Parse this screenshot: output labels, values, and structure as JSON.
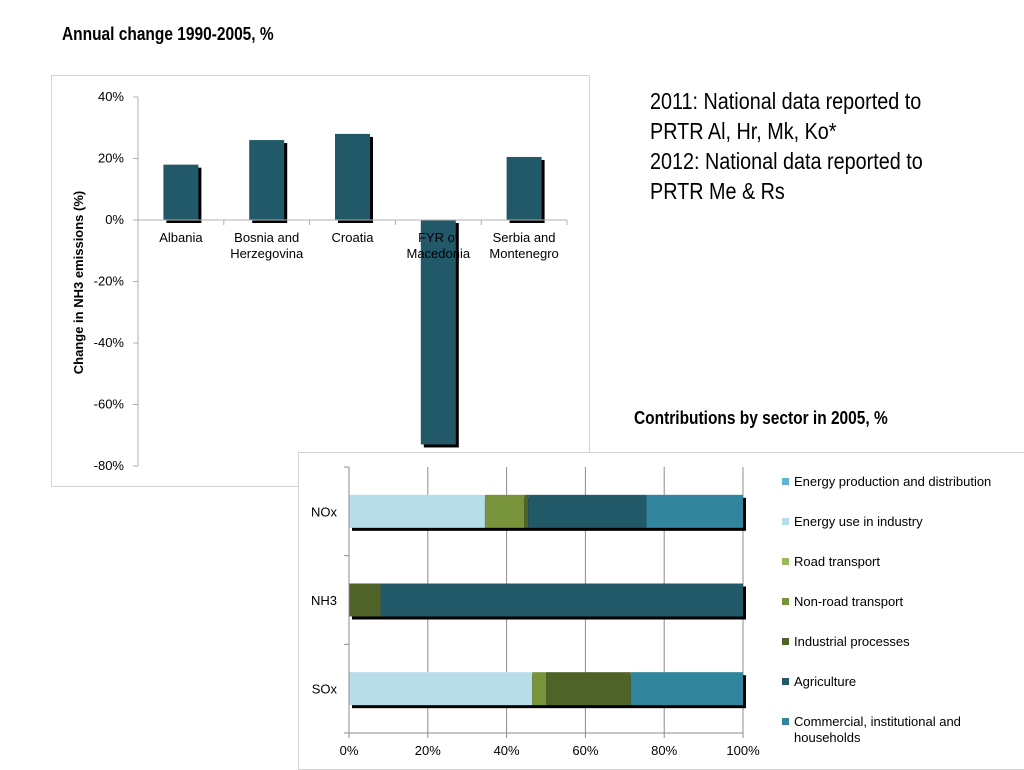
{
  "titles": {
    "annual_change": "Annual change 1990-2005, %",
    "contributions": "Contributions by sector in 2005, %"
  },
  "note_lines": [
    "2011: National data reported to",
    "PRTR Al, Hr, Mk, Ko*",
    "2012: National data reported to",
    "PRTR Me & Rs"
  ],
  "chart_data": [
    {
      "type": "bar",
      "title": "Annual change 1990-2005, %",
      "ylabel": "Change in NH3 emissions (%)",
      "xlabel": "",
      "categories": [
        [
          "Albania"
        ],
        [
          "Bosnia and",
          "Herzegovina"
        ],
        [
          "Croatia"
        ],
        [
          "FYR of",
          "Macedonia"
        ],
        [
          "Serbia and",
          "Montenegro"
        ]
      ],
      "values": [
        18,
        26,
        28,
        -73,
        20.5
      ],
      "ylim": [
        -80,
        40
      ],
      "yticks": [
        40,
        20,
        0,
        -20,
        -40,
        -60,
        -80
      ],
      "ytick_labels": [
        "40%",
        "20%",
        "0%",
        "-20%",
        "-40%",
        "-60%",
        "-80%"
      ],
      "bar_color": "#215968",
      "grid": false
    },
    {
      "type": "bar",
      "orientation": "horizontal",
      "stacked": true,
      "title": "Contributions by sector in 2005, %",
      "categories": [
        "NOx",
        "NH3",
        "SOx"
      ],
      "series": [
        {
          "name": "Energy production and distribution",
          "color": "#5fb4d4",
          "values": [
            0,
            0,
            0
          ]
        },
        {
          "name": "Energy use in industry",
          "color": "#b7dee8",
          "values": [
            34.5,
            0,
            46.5
          ]
        },
        {
          "name": "Road transport",
          "color": "#9bbb59",
          "values": [
            0,
            0,
            0
          ]
        },
        {
          "name": "Non-road transport",
          "color": "#77933c",
          "values": [
            10,
            0,
            3.5
          ]
        },
        {
          "name": "Industrial processes",
          "color": "#4f6228",
          "values": [
            1,
            8,
            21.5
          ]
        },
        {
          "name": "Agriculture",
          "color": "#215968",
          "values": [
            30,
            92,
            0
          ]
        },
        {
          "name": "Commercial, institutional and households",
          "color": "#31859c",
          "values": [
            24.5,
            0,
            28.5
          ]
        }
      ],
      "xlim": [
        0,
        100
      ],
      "xticks": [
        0,
        20,
        40,
        60,
        80,
        100
      ],
      "xtick_labels": [
        "0%",
        "20%",
        "40%",
        "60%",
        "80%",
        "100%"
      ],
      "grid": true,
      "legend_position": "right"
    }
  ]
}
